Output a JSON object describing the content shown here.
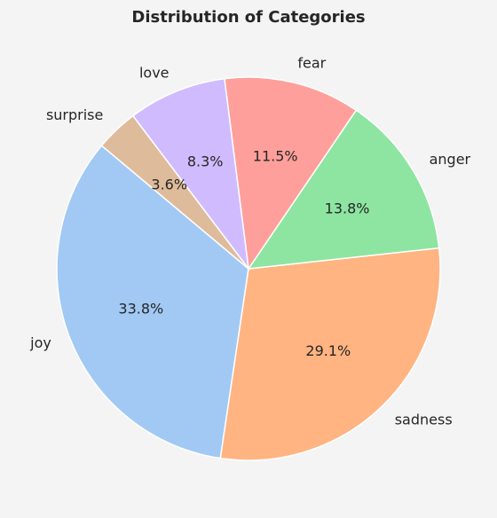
{
  "chart_data": {
    "type": "pie",
    "title": "Distribution of Categories",
    "categories": [
      "joy",
      "sadness",
      "anger",
      "fear",
      "love",
      "surprise"
    ],
    "values": [
      33.8,
      29.1,
      13.8,
      11.5,
      8.3,
      3.6
    ],
    "value_labels": [
      "33.8%",
      "29.1%",
      "13.8%",
      "11.5%",
      "8.3%",
      "3.6%"
    ],
    "colors": [
      "#a1c9f4",
      "#ffb482",
      "#8de5a1",
      "#ff9f9b",
      "#d0bbff",
      "#debb9b"
    ],
    "start_angle_deg": 140,
    "direction": "counterclockwise"
  }
}
